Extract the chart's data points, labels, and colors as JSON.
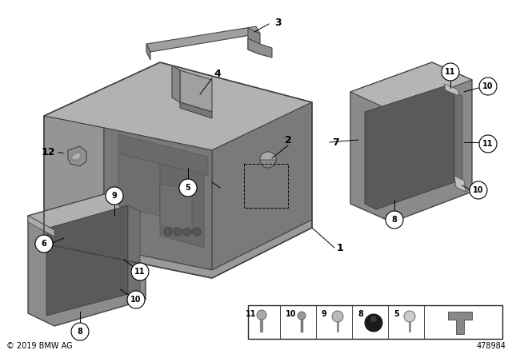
{
  "background_color": "#ffffff",
  "part_number": "478984",
  "copyright": "© 2019 BMW AG",
  "figsize": [
    6.4,
    4.48
  ],
  "dpi": 100,
  "tray_body_color": "#888888",
  "tray_top_color": "#aaaaaa",
  "tray_inner_color": "#6e6e6e",
  "tray_floor_color": "#7a7a7a",
  "box_color": "#808080",
  "box_inner_color": "#606060",
  "bar_color": "#909090",
  "part7_color": "#7e7e7e",
  "part7_inner_color": "#606060",
  "edge_color": "#444444",
  "label_fs": 9,
  "circle_fs": 7
}
